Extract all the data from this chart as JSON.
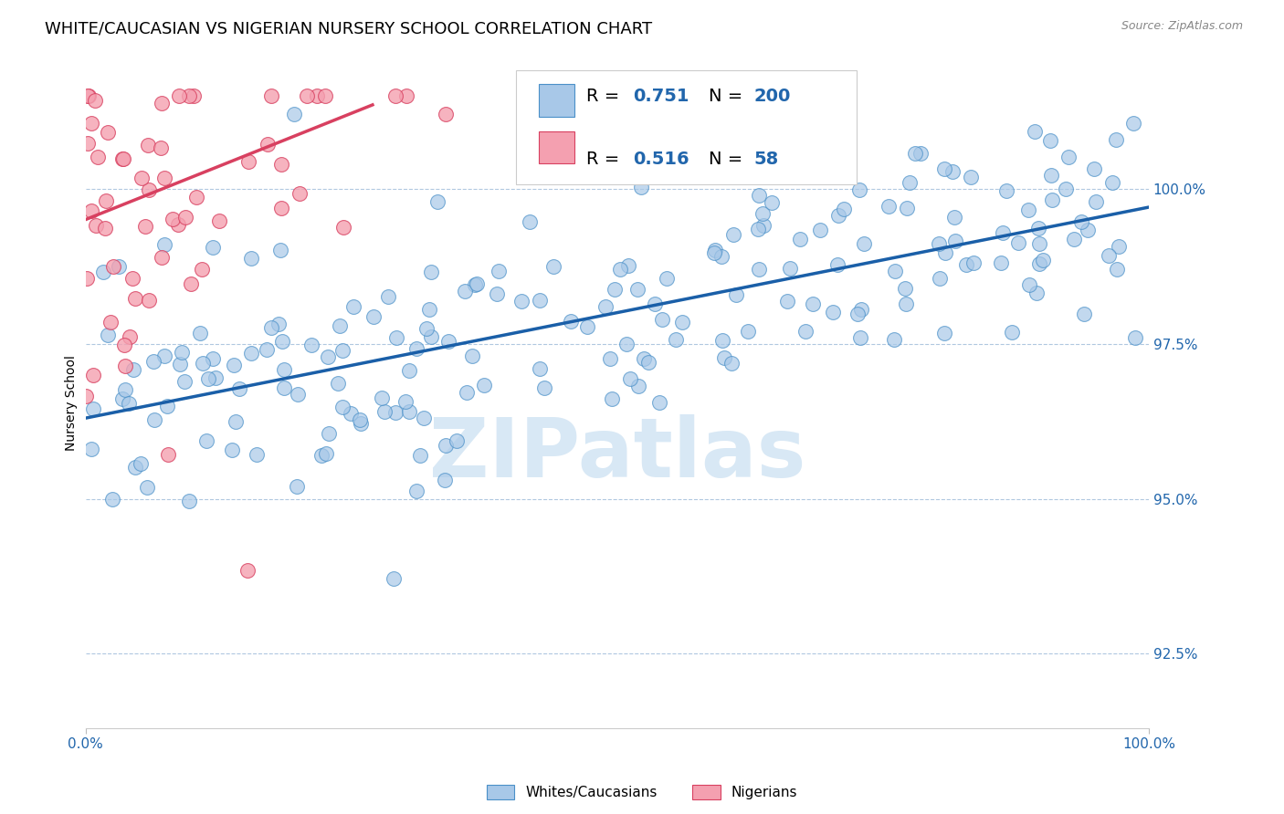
{
  "title": "WHITE/CAUCASIAN VS NIGERIAN NURSERY SCHOOL CORRELATION CHART",
  "source": "Source: ZipAtlas.com",
  "ylabel": "Nursery School",
  "yticks": [
    92.5,
    95.0,
    97.5,
    100.0
  ],
  "ytick_labels": [
    "92.5%",
    "95.0%",
    "97.5%",
    "100.0%"
  ],
  "xmin": 0.0,
  "xmax": 100.0,
  "ymin": 91.3,
  "ymax": 101.8,
  "blue_R": "0.751",
  "blue_N": "200",
  "pink_R": "0.516",
  "pink_N": "58",
  "blue_fill": "#a8c8e8",
  "blue_edge": "#4a90c8",
  "pink_fill": "#f4a0b0",
  "pink_edge": "#d84060",
  "trend_blue": "#1a5fa8",
  "trend_pink": "#d84060",
  "accent_blue": "#2166ac",
  "title_fontsize": 13,
  "axis_label_fontsize": 10,
  "tick_fontsize": 11,
  "legend_fontsize": 14,
  "watermark_color": "#d8e8f5",
  "blue_seed": 42,
  "pink_seed": 7,
  "blue_line_start_y": 96.3,
  "blue_line_end_y": 99.7,
  "pink_line_start_x": 0.0,
  "pink_line_start_y": 99.5,
  "pink_line_end_x": 27.0,
  "pink_line_end_y": 101.35,
  "legend_blue_label": "Whites/Caucasians",
  "legend_pink_label": "Nigerians",
  "dot_size": 130
}
